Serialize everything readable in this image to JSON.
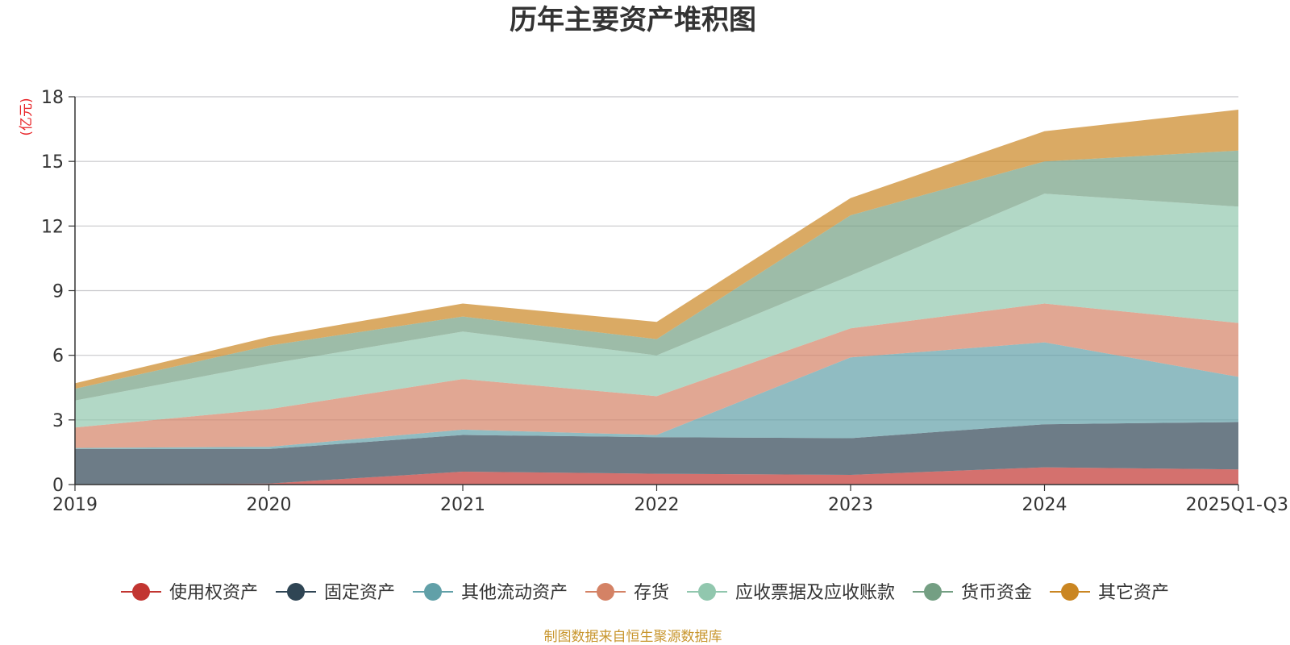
{
  "chart_data": {
    "type": "area",
    "stacked": true,
    "title": "历年主要资产堆积图",
    "unit_label": "(亿元)",
    "source": "制图数据来自恒生聚源数据库",
    "categories": [
      "2019",
      "2020",
      "2021",
      "2022",
      "2023",
      "2024",
      "2025Q1-Q3"
    ],
    "ylim": [
      0,
      18
    ],
    "yticks": [
      0,
      3,
      6,
      9,
      12,
      15,
      18
    ],
    "grid": true,
    "legend_position": "bottom",
    "series": [
      {
        "name": "使用权资产",
        "color": "#c23531",
        "values": [
          0.0,
          0.05,
          0.6,
          0.5,
          0.45,
          0.8,
          0.7
        ]
      },
      {
        "name": "固定资产",
        "color": "#2f4554",
        "values": [
          1.65,
          1.6,
          1.7,
          1.7,
          1.7,
          2.0,
          2.2
        ]
      },
      {
        "name": "其他流动资产",
        "color": "#61a0a8",
        "values": [
          0.05,
          0.1,
          0.25,
          0.1,
          3.75,
          3.8,
          2.1
        ]
      },
      {
        "name": "存货",
        "color": "#d48265",
        "values": [
          0.95,
          1.75,
          2.35,
          1.8,
          1.35,
          1.8,
          2.5
        ]
      },
      {
        "name": "应收票据及应收账款",
        "color": "#91c7ae",
        "values": [
          1.25,
          2.1,
          2.2,
          1.9,
          2.45,
          5.1,
          5.4
        ]
      },
      {
        "name": "货币资金",
        "color": "#749f83",
        "values": [
          0.55,
          0.85,
          0.7,
          0.75,
          2.8,
          1.5,
          2.6
        ]
      },
      {
        "name": "其它资产",
        "color": "#ca8622",
        "values": [
          0.25,
          0.4,
          0.6,
          0.8,
          0.8,
          1.4,
          1.9
        ]
      }
    ]
  }
}
